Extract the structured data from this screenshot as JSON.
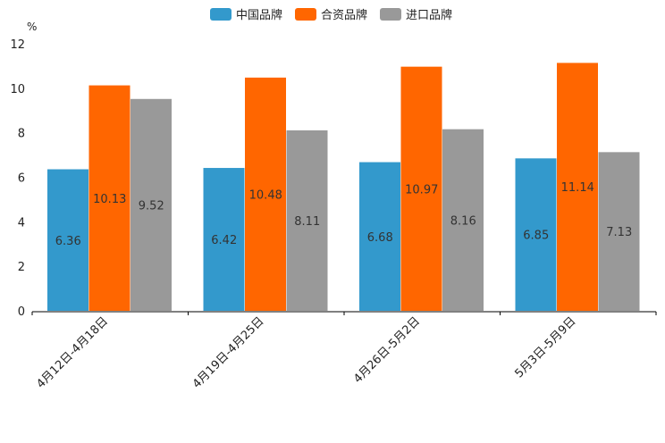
{
  "chart_data": {
    "type": "bar",
    "title": "",
    "xlabel": "",
    "ylabel": "%",
    "ylim": [
      0,
      12
    ],
    "yticks": [
      "0",
      "2",
      "4",
      "6",
      "8",
      "10",
      "12"
    ],
    "categories": [
      "4月12日-4月18日",
      "4月19日-4月25日",
      "4月26日-5月2日",
      "5月3日-5月9日"
    ],
    "legend_position": "top-center",
    "grid": false,
    "series": [
      {
        "name": "中国品牌",
        "color": "#3399cc",
        "values": [
          6.36,
          6.42,
          6.68,
          6.85
        ],
        "labels": [
          "6.36",
          "6.42",
          "6.68",
          "6.85"
        ]
      },
      {
        "name": "合资品牌",
        "color": "#ff6600",
        "values": [
          10.13,
          10.48,
          10.97,
          11.14
        ],
        "labels": [
          "10.13",
          "10.48",
          "10.97",
          "11.14"
        ]
      },
      {
        "name": "进口品牌",
        "color": "#999999",
        "values": [
          9.52,
          8.11,
          8.16,
          7.13
        ],
        "labels": [
          "9.52",
          "8.11",
          "8.16",
          "7.13"
        ]
      }
    ]
  }
}
